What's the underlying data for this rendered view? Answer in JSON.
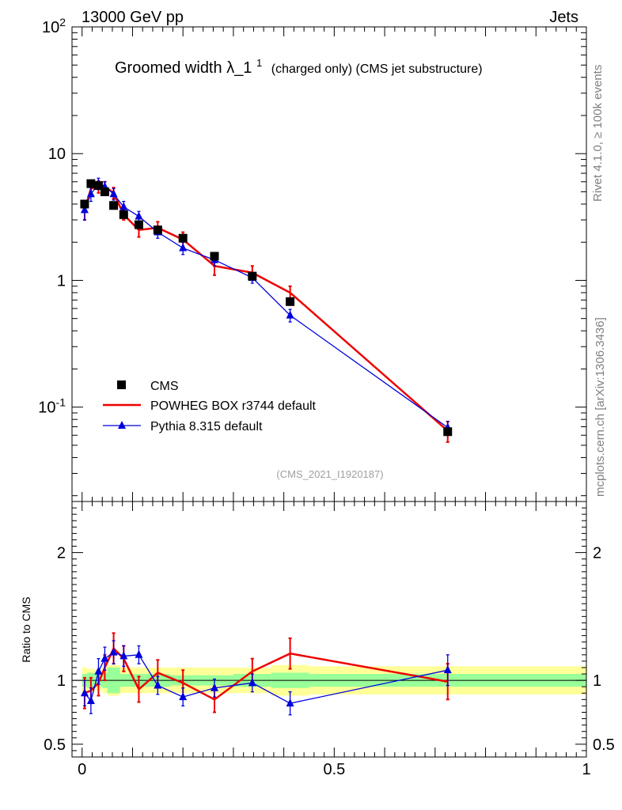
{
  "header": {
    "left": "13000 GeV pp",
    "right": "Jets"
  },
  "title": {
    "main": "Groomed width",
    "lambda": "λ_1",
    "sup": "1",
    "sub": "(charged only) (CMS jet substructure)"
  },
  "side_labels": {
    "rivet": "Rivet 4.1.0, ≥ 100k events",
    "mcplots": "mcplots.cern.ch [arXiv:1306.3436]"
  },
  "watermark": "(CMS_2021_I1920187)",
  "legend": [
    "CMS",
    "POWHEG BOX r3744 default",
    "Pythia 8.315 default"
  ],
  "colors": {
    "data": "#000000",
    "powheg": "#ee0000",
    "pythia": "#0000dd",
    "band_inner": "#99ff99",
    "band_outer": "#ffff99"
  },
  "chart_data": [
    {
      "type": "scatter",
      "name": "main",
      "yscale": "log",
      "xlim": [
        -0.02,
        1.0
      ],
      "ylim": [
        0.018,
        100
      ],
      "ytick_labels": [
        "10^-1",
        "1",
        "10",
        "10^2"
      ],
      "x": [
        0.005,
        0.0175,
        0.0325,
        0.045,
        0.0625,
        0.0825,
        0.1125,
        0.15,
        0.2,
        0.2625,
        0.3375,
        0.4125,
        0.725
      ],
      "series": [
        {
          "name": "CMS",
          "values": [
            4.0,
            5.8,
            5.6,
            5.0,
            3.9,
            3.3,
            2.75,
            2.5,
            2.15,
            1.55,
            1.08,
            0.68,
            0.064
          ],
          "err": [
            0.2,
            0.3,
            0.3,
            0.25,
            0.2,
            0.15,
            0.15,
            0.12,
            0.1,
            0.08,
            0.06,
            0.04,
            0.004
          ]
        },
        {
          "name": "POWHEG BOX r3744 default",
          "values": [
            3.6,
            5.3,
            5.5,
            5.5,
            4.9,
            3.3,
            2.5,
            2.6,
            2.1,
            1.3,
            1.15,
            0.8,
            0.065
          ],
          "err": [
            0.6,
            0.6,
            0.6,
            0.5,
            0.5,
            0.3,
            0.3,
            0.3,
            0.3,
            0.2,
            0.15,
            0.1,
            0.012
          ]
        },
        {
          "name": "Pythia 8.315 default",
          "values": [
            3.6,
            4.8,
            5.8,
            5.5,
            4.8,
            3.8,
            3.2,
            2.4,
            1.8,
            1.45,
            1.05,
            0.53,
            0.069
          ],
          "err": [
            0.6,
            0.6,
            0.6,
            0.5,
            0.5,
            0.4,
            0.3,
            0.25,
            0.2,
            0.15,
            0.1,
            0.06,
            0.008
          ]
        }
      ]
    },
    {
      "type": "scatter",
      "name": "ratio",
      "ylabel": "Ratio to CMS",
      "xlim": [
        -0.02,
        1.0
      ],
      "ylim": [
        0.4,
        2.4
      ],
      "ytick_labels": [
        "0.5",
        "1",
        "2"
      ],
      "xtick_labels": [
        "0",
        "0.5",
        "1"
      ],
      "x": [
        0.005,
        0.0175,
        0.0325,
        0.045,
        0.0625,
        0.0825,
        0.1125,
        0.15,
        0.2,
        0.2625,
        0.3375,
        0.4125,
        0.725
      ],
      "series": [
        {
          "name": "POWHEG BOX r3744 default",
          "values": [
            0.9,
            0.92,
            0.98,
            1.1,
            1.25,
            1.17,
            0.93,
            1.06,
            0.98,
            0.85,
            1.07,
            1.21,
            0.99
          ],
          "err": [
            0.12,
            0.1,
            0.1,
            0.1,
            0.12,
            0.1,
            0.1,
            0.1,
            0.1,
            0.1,
            0.1,
            0.12,
            0.14
          ]
        },
        {
          "name": "Pythia 8.315 default",
          "values": [
            0.9,
            0.84,
            1.07,
            1.17,
            1.22,
            1.19,
            1.2,
            0.96,
            0.87,
            0.94,
            0.98,
            0.82,
            1.08
          ],
          "err": [
            0.1,
            0.1,
            0.1,
            0.09,
            0.09,
            0.08,
            0.07,
            0.07,
            0.07,
            0.07,
            0.07,
            0.09,
            0.12
          ]
        }
      ],
      "band": {
        "edges": [
          0.0,
          0.01,
          0.025,
          0.04,
          0.05,
          0.075,
          0.09,
          0.125,
          0.175,
          0.225,
          0.3,
          0.375,
          0.45,
          1.0
        ],
        "inner": [
          0.05,
          0.06,
          0.05,
          0.06,
          0.1,
          0.05,
          0.05,
          0.05,
          0.04,
          0.04,
          0.05,
          0.06,
          0.05
        ],
        "outer": [
          0.1,
          0.09,
          0.08,
          0.1,
          0.12,
          0.1,
          0.1,
          0.1,
          0.1,
          0.1,
          0.1,
          0.12,
          0.11
        ]
      }
    }
  ]
}
